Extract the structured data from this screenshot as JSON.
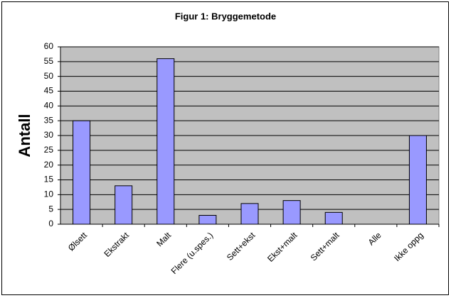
{
  "chart_data": {
    "type": "bar",
    "title": "Figur 1: Bryggemetode",
    "y_label": "Antall",
    "categories": [
      "Ølsett",
      "Ekstrakt",
      "Malt",
      "Flere (u.spes.)",
      "Sett+ekst",
      "Ekst+malt",
      "Sett+malt",
      "Alle",
      "Ikke oppg"
    ],
    "values": [
      35,
      13,
      56,
      3,
      7,
      8,
      4,
      0,
      30
    ],
    "color": "#9999ff",
    "background": "#c0c0c0",
    "ylim": [
      0,
      60
    ],
    "yticks": [
      0,
      5,
      10,
      15,
      20,
      25,
      30,
      35,
      40,
      45,
      50,
      55,
      60
    ],
    "grid": true
  }
}
